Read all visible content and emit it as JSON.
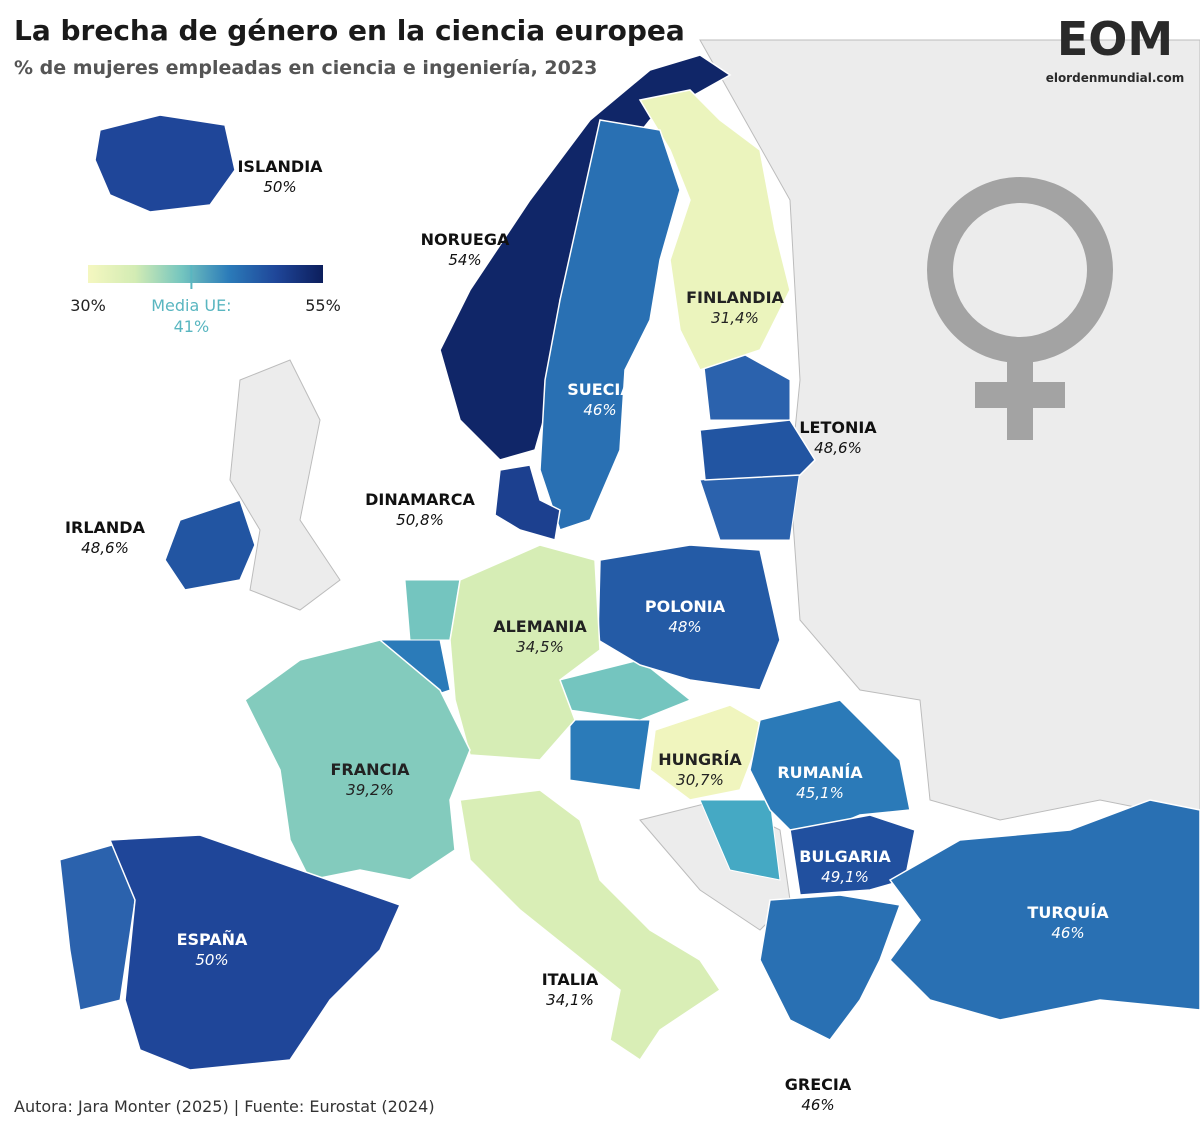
{
  "header": {
    "title": "La brecha de género en la ciencia europea",
    "subtitle": "% de mujeres empleadas en ciencia e ingeniería, 2023"
  },
  "logo": {
    "text": "EOM",
    "url": "elordenmundial.com"
  },
  "legend": {
    "ticks": [
      {
        "value": 30,
        "label": "30%"
      },
      {
        "value": 55,
        "label": "55%"
      }
    ],
    "mean_label": "Media UE:",
    "mean_value": {
      "value": 41,
      "label": "41%"
    }
  },
  "countries": [
    {
      "name": "ISLANDIA",
      "value": 50,
      "value_label": "50%"
    },
    {
      "name": "NORUEGA",
      "value": 54,
      "value_label": "54%"
    },
    {
      "name": "FINLANDIA",
      "value": 31.4,
      "value_label": "31,4%"
    },
    {
      "name": "SUECIA",
      "value": 46,
      "value_label": "46%"
    },
    {
      "name": "LETONIA",
      "value": 48.6,
      "value_label": "48,6%"
    },
    {
      "name": "DINAMARCA",
      "value": 50.8,
      "value_label": "50,8%"
    },
    {
      "name": "IRLANDA",
      "value": 48.6,
      "value_label": "48,6%"
    },
    {
      "name": "POLONIA",
      "value": 48,
      "value_label": "48%"
    },
    {
      "name": "ALEMANIA",
      "value": 34.5,
      "value_label": "34,5%"
    },
    {
      "name": "HUNGRÍA",
      "value": 30.7,
      "value_label": "30,7%"
    },
    {
      "name": "FRANCIA",
      "value": 39.2,
      "value_label": "39,2%"
    },
    {
      "name": "RUMANÍA",
      "value": 45.1,
      "value_label": "45,1%"
    },
    {
      "name": "BULGARIA",
      "value": 49.1,
      "value_label": "49,1%"
    },
    {
      "name": "ESPAÑA",
      "value": 50,
      "value_label": "50%"
    },
    {
      "name": "TURQUÍA",
      "value": 46,
      "value_label": "46%"
    },
    {
      "name": "ITALIA",
      "value": 34.1,
      "value_label": "34,1%"
    },
    {
      "name": "GRECIA",
      "value": 46,
      "value_label": "46%"
    }
  ],
  "footer": "Autora: Jara Monter (2025) | Fuente: Eurostat (2024)"
}
